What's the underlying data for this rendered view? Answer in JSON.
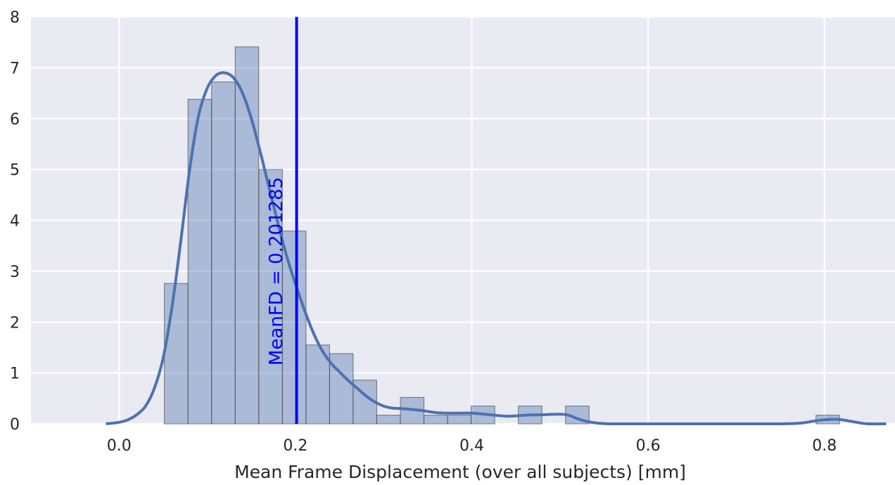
{
  "chart_data": {
    "type": "bar",
    "xlabel": "Mean Frame Displacement (over all subjects) [mm]",
    "ylabel": "",
    "xlim": [
      -0.1,
      0.88
    ],
    "ylim": [
      0,
      8
    ],
    "xticks": [
      "0.0",
      "0.2",
      "0.4",
      "0.6",
      "0.8"
    ],
    "yticks": [
      "0",
      "1",
      "2",
      "3",
      "4",
      "5",
      "6",
      "7",
      "8"
    ],
    "xtick_values": [
      0.0,
      0.2,
      0.4,
      0.6,
      0.8
    ],
    "ytick_values": [
      0,
      1,
      2,
      3,
      4,
      5,
      6,
      7,
      8
    ],
    "grid": true,
    "background": "#EAEAF2",
    "bar_color": "#4C72B0",
    "line_color": "#4C72B0",
    "marker_color": "#0000FF",
    "histogram": {
      "bin_width": 0.02676,
      "bins": [
        {
          "x0": 0.0513,
          "height": 2.76
        },
        {
          "x0": 0.0781,
          "height": 6.38
        },
        {
          "x0": 0.1049,
          "height": 6.72
        },
        {
          "x0": 0.1316,
          "height": 7.41
        },
        {
          "x0": 0.1584,
          "height": 5.0
        },
        {
          "x0": 0.1852,
          "height": 3.79
        },
        {
          "x0": 0.2119,
          "height": 1.55
        },
        {
          "x0": 0.2387,
          "height": 1.38
        },
        {
          "x0": 0.2654,
          "height": 0.86
        },
        {
          "x0": 0.2922,
          "height": 0.17
        },
        {
          "x0": 0.319,
          "height": 0.52
        },
        {
          "x0": 0.3457,
          "height": 0.17
        },
        {
          "x0": 0.3725,
          "height": 0.17
        },
        {
          "x0": 0.3993,
          "height": 0.35
        },
        {
          "x0": 0.426,
          "height": 0
        },
        {
          "x0": 0.4528,
          "height": 0.35
        },
        {
          "x0": 0.4796,
          "height": 0
        },
        {
          "x0": 0.5063,
          "height": 0.35
        },
        {
          "x0": 0.7904,
          "height": 0.17
        }
      ]
    },
    "kde": {
      "x": [
        -0.015,
        0.0,
        0.01,
        0.02,
        0.03,
        0.04,
        0.05,
        0.06,
        0.07,
        0.08,
        0.09,
        0.1,
        0.11,
        0.12,
        0.13,
        0.14,
        0.15,
        0.16,
        0.17,
        0.18,
        0.19,
        0.2,
        0.21,
        0.22,
        0.23,
        0.24,
        0.25,
        0.26,
        0.27,
        0.28,
        0.29,
        0.3,
        0.31,
        0.32,
        0.34,
        0.36,
        0.38,
        0.4,
        0.42,
        0.44,
        0.46,
        0.48,
        0.5,
        0.51,
        0.52,
        0.53,
        0.54,
        0.55,
        0.56,
        0.6,
        0.7,
        0.75,
        0.77,
        0.78,
        0.79,
        0.8,
        0.81,
        0.82,
        0.83,
        0.84,
        0.85,
        0.87
      ],
      "y": [
        0.0,
        0.03,
        0.08,
        0.18,
        0.35,
        0.7,
        1.3,
        2.3,
        3.6,
        5.0,
        6.05,
        6.6,
        6.85,
        6.9,
        6.8,
        6.5,
        6.0,
        5.35,
        4.65,
        3.95,
        3.3,
        2.75,
        2.25,
        1.8,
        1.45,
        1.2,
        1.02,
        0.85,
        0.7,
        0.55,
        0.43,
        0.35,
        0.31,
        0.3,
        0.27,
        0.22,
        0.21,
        0.21,
        0.18,
        0.15,
        0.17,
        0.18,
        0.19,
        0.17,
        0.1,
        0.05,
        0.02,
        0.005,
        0.0,
        0.0,
        0.0,
        0.0,
        0.01,
        0.03,
        0.06,
        0.08,
        0.09,
        0.08,
        0.05,
        0.02,
        0.0,
        0.0
      ]
    },
    "vline": {
      "x": 0.201285
    },
    "annotations": [
      {
        "text": "MeanFD = 0.201285",
        "x": 0.185,
        "y": 3.0,
        "rotation": -90
      }
    ]
  }
}
